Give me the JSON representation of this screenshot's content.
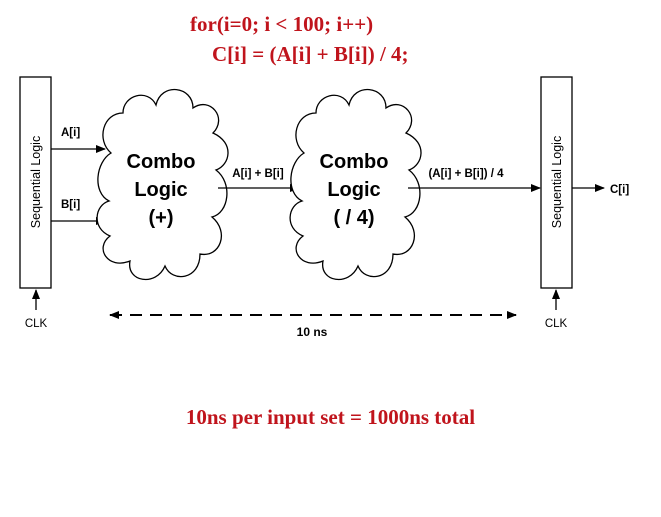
{
  "code": {
    "line1": "for(i=0; i < 100; i++)",
    "line2": "C[i] = (A[i] + B[i]) / 4;"
  },
  "diagram": {
    "left_register_label": "Sequential Logic",
    "right_register_label": "Sequential Logic",
    "input_a": "A[i]",
    "input_b": "B[i]",
    "cloud1": {
      "line1": "Combo",
      "line2": "Logic",
      "line3": "(+)"
    },
    "cloud2": {
      "line1": "Combo",
      "line2": "Logic",
      "line3": "( / 4)"
    },
    "mid_signal": "A[i] + B[i]",
    "result_signal": "(A[i] + B[i]) / 4",
    "output": "C[i]",
    "clk_left": "CLK",
    "clk_right": "CLK",
    "delay": "10 ns"
  },
  "summary": "10ns per input set = 1000ns total",
  "colors": {
    "accent": "#c0141c",
    "ink": "#000000"
  }
}
